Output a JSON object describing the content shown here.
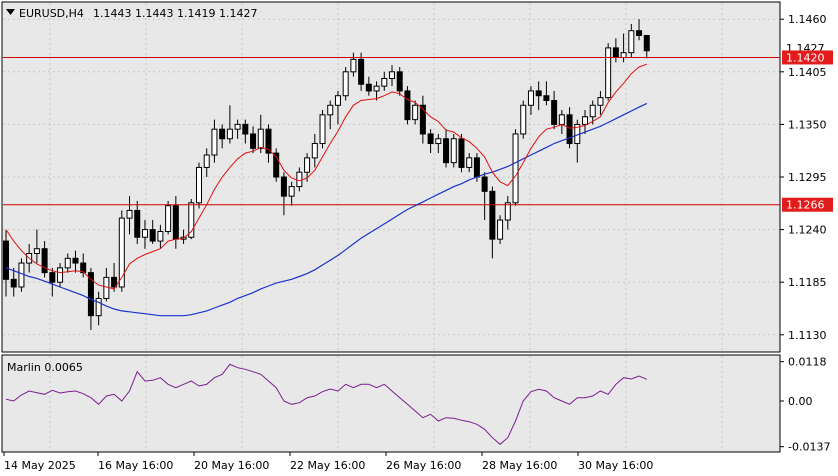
{
  "header": {
    "symbol_tf": "EURUSD,H4",
    "ohlc": "1.1443 1.1443 1.1419 1.1427"
  },
  "indicator": {
    "label": "Marlin 0.0065",
    "ticks": [
      "0.0118",
      "0.00",
      "-0.0137"
    ]
  },
  "colors": {
    "background": "#e8e8e8",
    "panel_bg": "#ffffff",
    "grid": "#c8c8c8",
    "candle": "#000000",
    "ma_fast": "#e01010",
    "ma_slow": "#1a33cc",
    "hline": "#cc0000",
    "price_tag_bg": "#e31b1b",
    "price_tag_fg": "#ffffff",
    "osc": "#7a1f8f"
  },
  "chart_data": [
    {
      "type": "candlestick",
      "symbol": "EURUSD",
      "timeframe": "H4",
      "ylim": [
        1.1112,
        1.1478
      ],
      "y_ticks": [
        "1.1460",
        "1.1405",
        "1.1350",
        "1.1295",
        "1.1240",
        "1.1185",
        "1.1130"
      ],
      "x_ticks": [
        "14 May 2025",
        "16 May 16:00",
        "20 May 16:00",
        "22 May 16:00",
        "26 May 16:00",
        "28 May 16:00",
        "30 May 16:00"
      ],
      "horizontal_lines": [
        {
          "value": 1.142,
          "label": "1.1420"
        },
        {
          "value": 1.1266,
          "label": "1.1266"
        }
      ],
      "current_price": {
        "value": 1.1427,
        "label": "1.1427"
      },
      "candles": [
        [
          1.1228,
          1.1239,
          1.117,
          1.1188
        ],
        [
          1.1188,
          1.12,
          1.117,
          1.118
        ],
        [
          1.118,
          1.121,
          1.1175,
          1.1205
        ],
        [
          1.1205,
          1.1225,
          1.1195,
          1.1215
        ],
        [
          1.1215,
          1.124,
          1.1205,
          1.122
        ],
        [
          1.122,
          1.1228,
          1.119,
          1.1195
        ],
        [
          1.1195,
          1.12,
          1.117,
          1.1185
        ],
        [
          1.1185,
          1.1205,
          1.118,
          1.12
        ],
        [
          1.12,
          1.1215,
          1.1195,
          1.121
        ],
        [
          1.121,
          1.1218,
          1.1195,
          1.1205
        ],
        [
          1.1205,
          1.1215,
          1.119,
          1.1195
        ],
        [
          1.1195,
          1.12,
          1.1135,
          1.115
        ],
        [
          1.115,
          1.1175,
          1.114,
          1.1168
        ],
        [
          1.1168,
          1.12,
          1.1165,
          1.119
        ],
        [
          1.119,
          1.1205,
          1.1175,
          1.118
        ],
        [
          1.118,
          1.126,
          1.1175,
          1.1252
        ],
        [
          1.1252,
          1.1275,
          1.1235,
          1.126
        ],
        [
          1.126,
          1.127,
          1.1225,
          1.1232
        ],
        [
          1.1232,
          1.125,
          1.122,
          1.124
        ],
        [
          1.124,
          1.125,
          1.1225,
          1.1228
        ],
        [
          1.1228,
          1.1245,
          1.122,
          1.1238
        ],
        [
          1.1238,
          1.127,
          1.1235,
          1.1265
        ],
        [
          1.1265,
          1.1275,
          1.122,
          1.123
        ],
        [
          1.123,
          1.124,
          1.1225,
          1.1232
        ],
        [
          1.1232,
          1.1272,
          1.123,
          1.1268
        ],
        [
          1.1268,
          1.131,
          1.1262,
          1.1305
        ],
        [
          1.1305,
          1.1325,
          1.1295,
          1.1318
        ],
        [
          1.1318,
          1.1355,
          1.131,
          1.1345
        ],
        [
          1.1345,
          1.135,
          1.1325,
          1.1335
        ],
        [
          1.1335,
          1.137,
          1.133,
          1.1345
        ],
        [
          1.1345,
          1.1355,
          1.1335,
          1.135
        ],
        [
          1.135,
          1.1355,
          1.133,
          1.134
        ],
        [
          1.134,
          1.1348,
          1.132,
          1.1325
        ],
        [
          1.1325,
          1.136,
          1.132,
          1.1345
        ],
        [
          1.1345,
          1.135,
          1.131,
          1.132
        ],
        [
          1.132,
          1.1325,
          1.129,
          1.1295
        ],
        [
          1.1295,
          1.13,
          1.1255,
          1.1275
        ],
        [
          1.1275,
          1.129,
          1.1265,
          1.1285
        ],
        [
          1.1285,
          1.1305,
          1.128,
          1.13
        ],
        [
          1.13,
          1.132,
          1.129,
          1.1315
        ],
        [
          1.1315,
          1.134,
          1.1305,
          1.133
        ],
        [
          1.133,
          1.1365,
          1.1325,
          1.136
        ],
        [
          1.136,
          1.1375,
          1.1345,
          1.137
        ],
        [
          1.137,
          1.1385,
          1.135,
          1.138
        ],
        [
          1.138,
          1.141,
          1.1375,
          1.1405
        ],
        [
          1.1405,
          1.1425,
          1.14,
          1.1418
        ],
        [
          1.1418,
          1.1425,
          1.1385,
          1.1392
        ],
        [
          1.1392,
          1.14,
          1.138,
          1.1385
        ],
        [
          1.1385,
          1.1395,
          1.1375,
          1.139
        ],
        [
          1.139,
          1.1405,
          1.1385,
          1.1398
        ],
        [
          1.1398,
          1.1412,
          1.139,
          1.1405
        ],
        [
          1.1405,
          1.141,
          1.138,
          1.1385
        ],
        [
          1.1385,
          1.139,
          1.135,
          1.1355
        ],
        [
          1.1355,
          1.1375,
          1.135,
          1.137
        ],
        [
          1.137,
          1.138,
          1.133,
          1.134
        ],
        [
          1.134,
          1.1345,
          1.132,
          1.133
        ],
        [
          1.133,
          1.134,
          1.132,
          1.1335
        ],
        [
          1.1335,
          1.1345,
          1.1305,
          1.131
        ],
        [
          1.131,
          1.134,
          1.1305,
          1.1335
        ],
        [
          1.1335,
          1.134,
          1.13,
          1.1305
        ],
        [
          1.1305,
          1.132,
          1.13,
          1.1315
        ],
        [
          1.1315,
          1.132,
          1.129,
          1.1295
        ],
        [
          1.1295,
          1.13,
          1.125,
          1.128
        ],
        [
          1.128,
          1.1285,
          1.121,
          1.123
        ],
        [
          1.123,
          1.1255,
          1.1225,
          1.125
        ],
        [
          1.125,
          1.1275,
          1.124,
          1.1268
        ],
        [
          1.1268,
          1.1345,
          1.1265,
          1.134
        ],
        [
          1.134,
          1.1375,
          1.1335,
          1.137
        ],
        [
          1.137,
          1.139,
          1.136,
          1.1385
        ],
        [
          1.1385,
          1.1395,
          1.1365,
          1.138
        ],
        [
          1.138,
          1.1395,
          1.137,
          1.1375
        ],
        [
          1.1375,
          1.1385,
          1.1345,
          1.135
        ],
        [
          1.135,
          1.1365,
          1.134,
          1.136
        ],
        [
          1.136,
          1.1368,
          1.1325,
          1.133
        ],
        [
          1.133,
          1.1355,
          1.131,
          1.135
        ],
        [
          1.135,
          1.1365,
          1.134,
          1.1358
        ],
        [
          1.1358,
          1.1375,
          1.135,
          1.137
        ],
        [
          1.137,
          1.1385,
          1.136,
          1.1378
        ],
        [
          1.1378,
          1.1435,
          1.1375,
          1.143
        ],
        [
          1.143,
          1.144,
          1.1415,
          1.142
        ],
        [
          1.142,
          1.1445,
          1.1415,
          1.1425
        ],
        [
          1.1425,
          1.1455,
          1.142,
          1.1448
        ],
        [
          1.1448,
          1.146,
          1.1438,
          1.1443
        ],
        [
          1.1443,
          1.1443,
          1.1419,
          1.1427
        ]
      ],
      "ma_fast": [
        1.124,
        1.1228,
        1.1218,
        1.121,
        1.1204,
        1.12,
        1.1197,
        1.1195,
        1.1196,
        1.1197,
        1.1196,
        1.1188,
        1.1182,
        1.118,
        1.1178,
        1.119,
        1.1204,
        1.121,
        1.1214,
        1.1217,
        1.122,
        1.1228,
        1.123,
        1.1231,
        1.1238,
        1.1252,
        1.1266,
        1.1282,
        1.1295,
        1.1305,
        1.1314,
        1.132,
        1.1322,
        1.1326,
        1.1324,
        1.1316,
        1.1302,
        1.1294,
        1.1291,
        1.1294,
        1.1302,
        1.1316,
        1.133,
        1.1343,
        1.1358,
        1.137,
        1.1375,
        1.1376,
        1.1377,
        1.138,
        1.1384,
        1.1382,
        1.1376,
        1.1373,
        1.1366,
        1.1358,
        1.1353,
        1.1344,
        1.1342,
        1.1336,
        1.1332,
        1.1325,
        1.1316,
        1.13,
        1.129,
        1.1286,
        1.1296,
        1.131,
        1.1325,
        1.1337,
        1.1345,
        1.1347,
        1.135,
        1.1346,
        1.1347,
        1.1349,
        1.1353,
        1.1358,
        1.1373,
        1.1384,
        1.1393,
        1.1403,
        1.141,
        1.1413
      ],
      "ma_slow": [
        1.12,
        1.1197,
        1.1194,
        1.1191,
        1.1189,
        1.1186,
        1.1183,
        1.118,
        1.1177,
        1.1174,
        1.1171,
        1.1167,
        1.1164,
        1.116,
        1.1157,
        1.1155,
        1.1154,
        1.1153,
        1.1152,
        1.1151,
        1.115,
        1.115,
        1.115,
        1.115,
        1.1151,
        1.1153,
        1.1155,
        1.1158,
        1.1161,
        1.1164,
        1.1168,
        1.1171,
        1.1174,
        1.1178,
        1.1181,
        1.1184,
        1.1186,
        1.1188,
        1.1191,
        1.1194,
        1.1198,
        1.1203,
        1.1208,
        1.1213,
        1.1219,
        1.1225,
        1.1231,
        1.1236,
        1.1241,
        1.1246,
        1.1251,
        1.1256,
        1.1261,
        1.1265,
        1.1269,
        1.1273,
        1.1277,
        1.1281,
        1.1285,
        1.1288,
        1.1292,
        1.1295,
        1.1298,
        1.13,
        1.1303,
        1.1306,
        1.131,
        1.1314,
        1.1318,
        1.1322,
        1.1326,
        1.133,
        1.1333,
        1.1336,
        1.1339,
        1.1342,
        1.1345,
        1.1348,
        1.1352,
        1.1356,
        1.136,
        1.1364,
        1.1368,
        1.1372
      ]
    },
    {
      "type": "line",
      "name": "Marlin 0.0065",
      "ylim": [
        -0.015,
        0.0135
      ],
      "y_ticks": [
        "0.0118",
        "0.00",
        "-0.0137"
      ],
      "values": [
        0.0005,
        0.0,
        0.0018,
        0.003,
        0.0025,
        0.002,
        0.0032,
        0.0024,
        0.0028,
        0.003,
        0.0022,
        0.001,
        -0.001,
        0.0015,
        0.002,
        0.0,
        0.003,
        0.0088,
        0.006,
        0.0062,
        0.007,
        0.005,
        0.004,
        0.005,
        0.006,
        0.0045,
        0.005,
        0.007,
        0.008,
        0.011,
        0.01,
        0.0095,
        0.0088,
        0.008,
        0.006,
        0.004,
        0.0,
        -0.001,
        -0.0005,
        0.001,
        0.0015,
        0.0028,
        0.0036,
        0.003,
        0.005,
        0.004,
        0.005,
        0.005,
        0.004,
        0.005,
        0.003,
        0.001,
        -0.001,
        -0.003,
        -0.005,
        -0.004,
        -0.006,
        -0.005,
        -0.0052,
        -0.0058,
        -0.0062,
        -0.007,
        -0.0085,
        -0.011,
        -0.013,
        -0.011,
        -0.006,
        0.0,
        0.0028,
        0.0035,
        0.003,
        0.001,
        0.0,
        -0.001,
        0.001,
        0.001,
        0.0015,
        0.003,
        0.002,
        0.005,
        0.007,
        0.0066,
        0.0075,
        0.0065
      ]
    }
  ]
}
